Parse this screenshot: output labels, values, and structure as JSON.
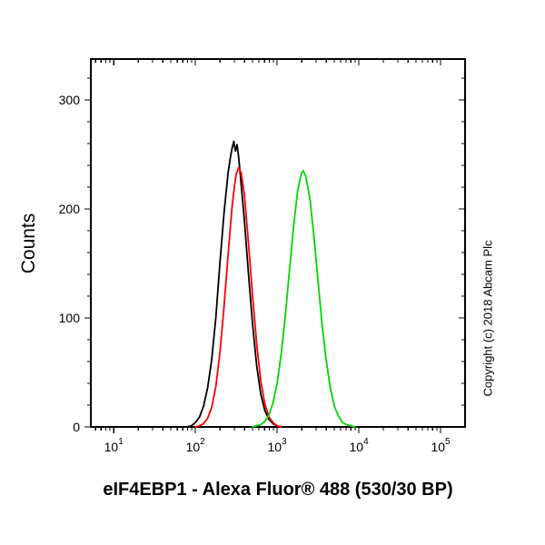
{
  "copyright": "Copyright (c) 2018 Abcam Plc",
  "chart_data": {
    "type": "line",
    "subtype": "flow-cytometry-histogram",
    "title": "eIF4EBP1 - Alexa Fluor® 488 (530/30 BP)",
    "xlabel": "eIF4EBP1 - Alexa Fluor® 488 (530/30 BP)",
    "ylabel": "Counts",
    "x_scale": "log10",
    "x_log_range": [
      0.72,
      5.3
    ],
    "x_tick_base": "10",
    "x_major_tick_exponents": [
      1,
      2,
      3,
      4,
      5
    ],
    "y_range": [
      0,
      337.5
    ],
    "y_major_ticks": [
      0,
      100,
      200,
      300
    ],
    "y_minor_step": 20,
    "grid": false,
    "legend": false,
    "series": [
      {
        "name": "black-curve",
        "color": "#000000",
        "peak_x": 295,
        "peak_counts": 262,
        "points": [
          [
            1.9,
            0
          ],
          [
            1.95,
            1
          ],
          [
            2.0,
            4
          ],
          [
            2.05,
            9
          ],
          [
            2.1,
            19
          ],
          [
            2.15,
            36
          ],
          [
            2.2,
            62
          ],
          [
            2.25,
            100
          ],
          [
            2.3,
            150
          ],
          [
            2.35,
            196
          ],
          [
            2.4,
            233
          ],
          [
            2.43,
            248
          ],
          [
            2.45,
            256
          ],
          [
            2.47,
            262
          ],
          [
            2.49,
            253
          ],
          [
            2.51,
            259
          ],
          [
            2.53,
            247
          ],
          [
            2.55,
            231
          ],
          [
            2.6,
            189
          ],
          [
            2.65,
            140
          ],
          [
            2.7,
            94
          ],
          [
            2.75,
            56
          ],
          [
            2.8,
            30
          ],
          [
            2.85,
            15
          ],
          [
            2.9,
            7
          ],
          [
            2.95,
            3
          ],
          [
            3.0,
            1
          ],
          [
            3.05,
            0
          ]
        ]
      },
      {
        "name": "red-curve",
        "color": "#ff0000",
        "peak_x": 339,
        "peak_counts": 238,
        "points": [
          [
            2.0,
            0
          ],
          [
            2.05,
            1
          ],
          [
            2.1,
            3
          ],
          [
            2.15,
            8
          ],
          [
            2.2,
            18
          ],
          [
            2.25,
            37
          ],
          [
            2.3,
            68
          ],
          [
            2.35,
            110
          ],
          [
            2.4,
            158
          ],
          [
            2.45,
            203
          ],
          [
            2.48,
            222
          ],
          [
            2.5,
            232
          ],
          [
            2.53,
            238
          ],
          [
            2.56,
            233
          ],
          [
            2.6,
            213
          ],
          [
            2.65,
            168
          ],
          [
            2.7,
            120
          ],
          [
            2.75,
            76
          ],
          [
            2.8,
            42
          ],
          [
            2.85,
            21
          ],
          [
            2.9,
            9
          ],
          [
            2.95,
            4
          ],
          [
            3.0,
            1
          ],
          [
            3.05,
            0
          ]
        ]
      },
      {
        "name": "green-curve",
        "color": "#00d800",
        "peak_x": 2090,
        "peak_counts": 235,
        "points": [
          [
            2.7,
            0
          ],
          [
            2.75,
            1
          ],
          [
            2.8,
            2
          ],
          [
            2.85,
            5
          ],
          [
            2.9,
            11
          ],
          [
            2.95,
            22
          ],
          [
            3.0,
            40
          ],
          [
            3.05,
            67
          ],
          [
            3.1,
            102
          ],
          [
            3.15,
            143
          ],
          [
            3.2,
            183
          ],
          [
            3.25,
            216
          ],
          [
            3.28,
            227
          ],
          [
            3.3,
            233
          ],
          [
            3.32,
            235
          ],
          [
            3.35,
            230
          ],
          [
            3.4,
            210
          ],
          [
            3.45,
            175
          ],
          [
            3.5,
            134
          ],
          [
            3.55,
            94
          ],
          [
            3.6,
            61
          ],
          [
            3.65,
            36
          ],
          [
            3.7,
            19
          ],
          [
            3.75,
            10
          ],
          [
            3.8,
            4
          ],
          [
            3.85,
            2
          ],
          [
            3.9,
            1
          ],
          [
            3.95,
            0
          ]
        ]
      }
    ]
  }
}
